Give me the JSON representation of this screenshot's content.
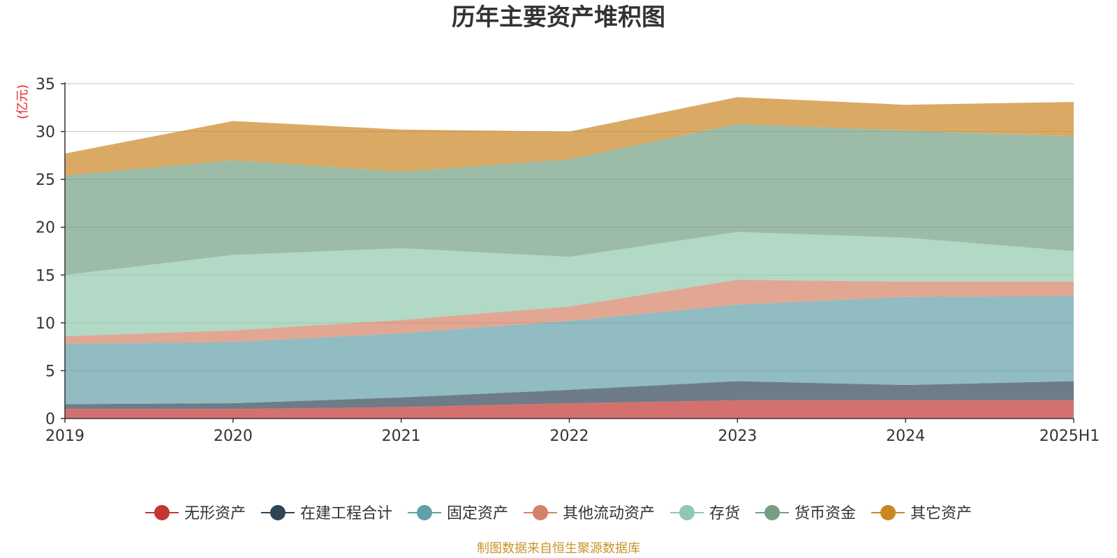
{
  "chart_data": {
    "type": "area",
    "stacked": true,
    "title": "历年主要资产堆积图",
    "ylabel": "(亿元)",
    "xlabel": "",
    "categories": [
      "2019",
      "2020",
      "2021",
      "2022",
      "2023",
      "2024",
      "2025H1"
    ],
    "ylim": [
      0,
      35
    ],
    "yticks": [
      0,
      5,
      10,
      15,
      20,
      25,
      30,
      35
    ],
    "grid": true,
    "legend_position": "bottom",
    "series": [
      {
        "name": "无形资产",
        "color": "#c23531",
        "values": [
          1.0,
          1.0,
          1.2,
          1.6,
          1.9,
          1.9,
          1.9
        ]
      },
      {
        "name": "在建工程合计",
        "color": "#2f4554",
        "values": [
          0.5,
          0.6,
          1.0,
          1.4,
          2.0,
          1.6,
          2.0
        ]
      },
      {
        "name": "固定资产",
        "color": "#61a0a8",
        "values": [
          6.3,
          6.4,
          6.7,
          7.2,
          8.0,
          9.2,
          8.9
        ]
      },
      {
        "name": "其他流动资产",
        "color": "#d48265",
        "values": [
          0.8,
          1.2,
          1.4,
          1.5,
          2.6,
          1.6,
          1.5
        ]
      },
      {
        "name": "存货",
        "color": "#91c7ae",
        "values": [
          6.4,
          7.9,
          7.5,
          5.2,
          5.0,
          4.6,
          3.2
        ]
      },
      {
        "name": "货币资金",
        "color": "#749f83",
        "values": [
          10.4,
          9.9,
          8.0,
          10.2,
          11.3,
          11.2,
          12.0
        ]
      },
      {
        "name": "其它资产",
        "color": "#ca8622",
        "values": [
          2.3,
          4.1,
          4.4,
          2.9,
          2.8,
          2.7,
          3.6
        ]
      }
    ]
  },
  "footer": {
    "source": "制图数据来自恒生聚源数据库"
  }
}
